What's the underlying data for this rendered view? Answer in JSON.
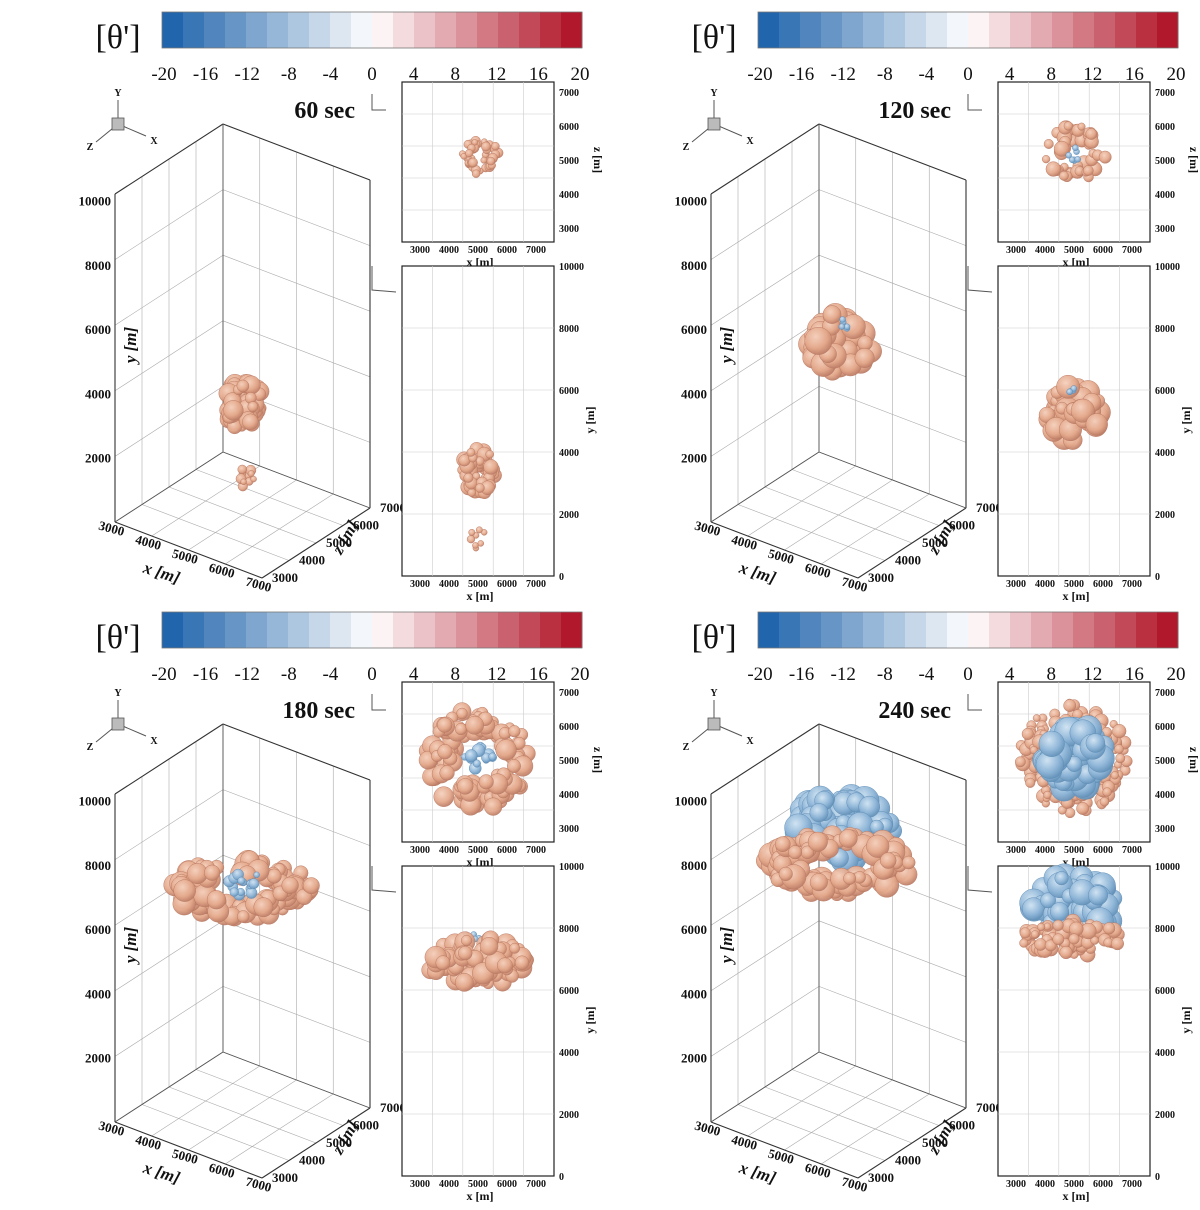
{
  "colorbar": {
    "title": "[θ']",
    "ticks": [
      "-20",
      "-16",
      "-12",
      "-8",
      "-4",
      "0",
      "4",
      "8",
      "12",
      "16",
      "20"
    ],
    "cold_color": "#2166ac",
    "neutral_color": "#ffffff",
    "warm_color": "#b2182b"
  },
  "panel_labels": {
    "x_label": "x [m]",
    "y_label": "y [m]",
    "z_label": "z [m]",
    "axis_triad": [
      "Y",
      "Z",
      "X"
    ]
  },
  "iso_colors": {
    "warm": "#e4a98c",
    "warm_edge": "#b87862",
    "cold": "#8fb6d8",
    "cold_edge": "#5f8db5"
  },
  "chart_data": [
    {
      "type": "3d-isosurface",
      "time_label": "60 sec",
      "x_ticks": [
        "3000",
        "4000",
        "5000",
        "6000",
        "7000"
      ],
      "y_ticks": [
        "2000",
        "4000",
        "6000",
        "8000",
        "10000"
      ],
      "z_ticks": [
        "3000",
        "4000",
        "5000",
        "6000",
        "7000"
      ],
      "top_view": {
        "x_ticks": [
          "3000",
          "4000",
          "5000",
          "6000",
          "7000"
        ],
        "z_ticks": [
          "3000",
          "4000",
          "5000",
          "6000",
          "7000"
        ]
      },
      "side_view": {
        "x_ticks": [
          "3000",
          "4000",
          "5000",
          "6000",
          "7000"
        ],
        "y_ticks": [
          "0",
          "2000",
          "4000",
          "6000",
          "8000",
          "10000"
        ]
      },
      "plume": {
        "warm_center_x": 5000,
        "warm_center_z": 5000,
        "warm_radius": 700,
        "warm_y_range": [
          2500,
          4300
        ],
        "lower_blob_y_range": [
          800,
          1600
        ],
        "cold_present": false
      }
    },
    {
      "type": "3d-isosurface",
      "time_label": "120 sec",
      "x_ticks": [
        "3000",
        "4000",
        "5000",
        "6000",
        "7000"
      ],
      "y_ticks": [
        "2000",
        "4000",
        "6000",
        "8000",
        "10000"
      ],
      "z_ticks": [
        "3000",
        "4000",
        "5000",
        "6000",
        "7000"
      ],
      "top_view": {
        "x_ticks": [
          "3000",
          "4000",
          "5000",
          "6000",
          "7000"
        ],
        "z_ticks": [
          "3000",
          "4000",
          "5000",
          "6000",
          "7000"
        ]
      },
      "side_view": {
        "x_ticks": [
          "3000",
          "4000",
          "5000",
          "6000",
          "7000"
        ],
        "y_ticks": [
          "0",
          "2000",
          "4000",
          "6000",
          "8000",
          "10000"
        ]
      },
      "plume": {
        "warm_center_x": 5000,
        "warm_center_z": 5000,
        "warm_radius": 1100,
        "warm_y_range": [
          4200,
          6300
        ],
        "cold_present": true,
        "cold_radius": 200
      }
    },
    {
      "type": "3d-isosurface",
      "time_label": "180 sec",
      "x_ticks": [
        "3000",
        "4000",
        "5000",
        "6000",
        "7000"
      ],
      "y_ticks": [
        "2000",
        "4000",
        "6000",
        "8000",
        "10000"
      ],
      "z_ticks": [
        "3000",
        "4000",
        "5000",
        "6000",
        "7000"
      ],
      "top_view": {
        "x_ticks": [
          "3000",
          "4000",
          "5000",
          "6000",
          "7000"
        ],
        "z_ticks": [
          "3000",
          "4000",
          "5000",
          "6000",
          "7000"
        ]
      },
      "side_view": {
        "x_ticks": [
          "3000",
          "4000",
          "5000",
          "6000",
          "7000"
        ],
        "y_ticks": [
          "0",
          "2000",
          "4000",
          "6000",
          "8000",
          "10000"
        ]
      },
      "plume": {
        "warm_center_x": 5000,
        "warm_center_z": 5000,
        "warm_radius": 1800,
        "warm_inner_radius": 900,
        "warm_y_range": [
          6000,
          7800
        ],
        "cold_present": true,
        "cold_radius": 600
      }
    },
    {
      "type": "3d-isosurface",
      "time_label": "240 sec",
      "x_ticks": [
        "3000",
        "4000",
        "5000",
        "6000",
        "7000"
      ],
      "y_ticks": [
        "2000",
        "4000",
        "6000",
        "8000",
        "10000"
      ],
      "z_ticks": [
        "3000",
        "4000",
        "5000",
        "6000",
        "7000"
      ],
      "top_view": {
        "x_ticks": [
          "3000",
          "4000",
          "5000",
          "6000",
          "7000"
        ],
        "z_ticks": [
          "3000",
          "4000",
          "5000",
          "6000",
          "7000"
        ]
      },
      "side_view": {
        "x_ticks": [
          "3000",
          "4000",
          "5000",
          "6000",
          "7000"
        ],
        "y_ticks": [
          "0",
          "2000",
          "4000",
          "6000",
          "8000",
          "10000"
        ]
      },
      "plume": {
        "warm_center_x": 5000,
        "warm_center_z": 5000,
        "warm_radius": 1900,
        "warm_inner_radius": 1300,
        "warm_y_range": [
          7000,
          8300
        ],
        "cold_present": true,
        "cold_radius": 1300,
        "cold_y_range": [
          7600,
          9900
        ]
      }
    }
  ]
}
